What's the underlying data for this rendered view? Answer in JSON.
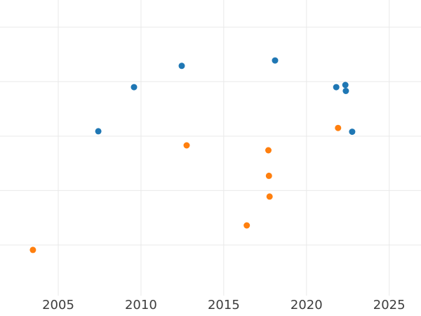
{
  "chart_data": {
    "type": "scatter",
    "title": "",
    "xlabel": "",
    "ylabel": "",
    "grid": true,
    "legend_position": "none",
    "background_color": "#ffffff",
    "gridline_color": "#e9e9e9",
    "tick_label_color": "#3d3d3d",
    "x_tick_values": [
      2005,
      2010,
      2015,
      2020,
      2025
    ],
    "x_tick_labels": [
      "2005",
      "2010",
      "2015",
      "2020",
      "2025"
    ],
    "x_range": [
      2001.48,
      2026.92
    ],
    "y_range": [
      0.07,
      5.5
    ],
    "y_gridline_values": [
      1,
      2,
      3,
      4,
      5
    ],
    "y_axis_note": "y-axis tick labels not visible (plot cropped at left edge); y values in gridline units",
    "marker_diameter_px": 9,
    "series": [
      {
        "name": "blue-series",
        "color": "#1f77b4",
        "points": [
          {
            "x": 2007.42,
            "y": 3.09
          },
          {
            "x": 2009.58,
            "y": 3.9
          },
          {
            "x": 2012.46,
            "y": 4.29
          },
          {
            "x": 2018.1,
            "y": 4.39
          },
          {
            "x": 2021.8,
            "y": 3.9
          },
          {
            "x": 2022.35,
            "y": 3.94
          },
          {
            "x": 2022.38,
            "y": 3.83
          },
          {
            "x": 2022.76,
            "y": 3.08
          }
        ]
      },
      {
        "name": "orange-series",
        "color": "#ff7f0e",
        "points": [
          {
            "x": 2003.47,
            "y": 0.91
          },
          {
            "x": 2012.76,
            "y": 2.83
          },
          {
            "x": 2016.39,
            "y": 1.36
          },
          {
            "x": 2017.7,
            "y": 2.74
          },
          {
            "x": 2017.73,
            "y": 2.27
          },
          {
            "x": 2017.77,
            "y": 1.89
          },
          {
            "x": 2021.91,
            "y": 3.15
          }
        ]
      }
    ]
  }
}
